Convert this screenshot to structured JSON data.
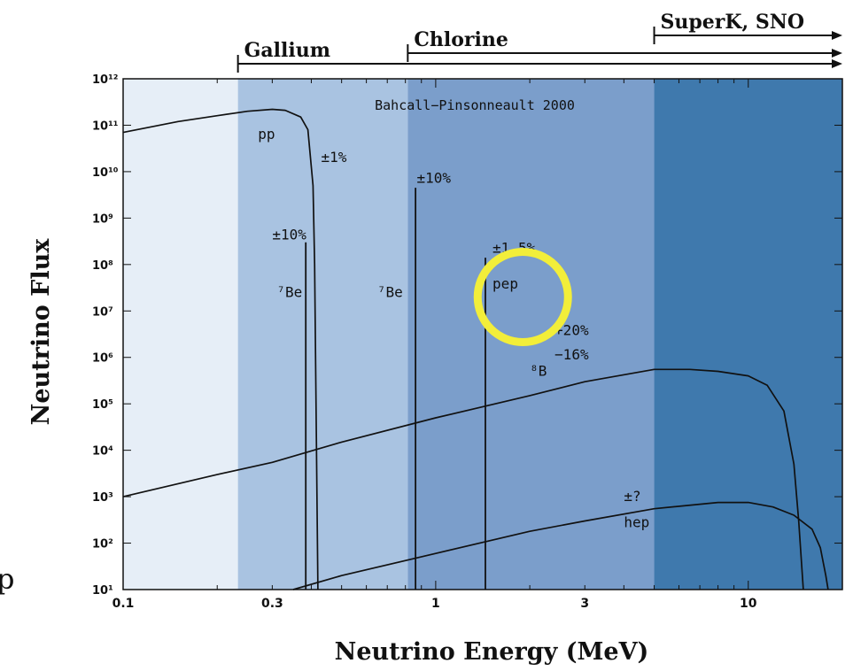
{
  "chart_data": {
    "type": "line",
    "title": "Bahcall−Pinsonneault 2000",
    "xlabel": "Neutrino Energy (MeV)",
    "ylabel": "Neutrino Flux",
    "xscale": "log",
    "yscale": "log",
    "xlim": [
      0.1,
      20
    ],
    "ylim": [
      10,
      1000000000000.0
    ],
    "x_ticks": [
      {
        "value": 0.1,
        "label": "0.1"
      },
      {
        "value": 0.3,
        "label": "0.3"
      },
      {
        "value": 1,
        "label": "1"
      },
      {
        "value": 3,
        "label": "3"
      },
      {
        "value": 10,
        "label": "10"
      }
    ],
    "y_ticks": [
      {
        "exp": 1,
        "label": "10¹"
      },
      {
        "exp": 2,
        "label": "10²"
      },
      {
        "exp": 3,
        "label": "10³"
      },
      {
        "exp": 4,
        "label": "10⁴"
      },
      {
        "exp": 5,
        "label": "10⁵"
      },
      {
        "exp": 6,
        "label": "10⁶"
      },
      {
        "exp": 7,
        "label": "10⁷"
      },
      {
        "exp": 8,
        "label": "10⁸"
      },
      {
        "exp": 9,
        "label": "10⁹"
      },
      {
        "exp": 10,
        "label": "10¹⁰"
      },
      {
        "exp": 11,
        "label": "10¹¹"
      },
      {
        "exp": 12,
        "label": "10¹²"
      }
    ],
    "grid": false,
    "bands": [
      {
        "x": [
          0.1,
          0.233
        ],
        "color": "#e6eef7"
      },
      {
        "x": [
          0.233,
          0.814
        ],
        "color": "#a9c3e1"
      },
      {
        "x": [
          0.814,
          5.0
        ],
        "color": "#7b9ecb"
      },
      {
        "x": [
          5.0,
          20
        ],
        "color": "#3f79ad"
      }
    ],
    "thresholds": [
      {
        "name": "Gallium",
        "x": 0.233
      },
      {
        "name": "Chlorine",
        "x": 0.814
      },
      {
        "name": "SuperK, SNO",
        "x": 5.0
      }
    ],
    "series": [
      {
        "name": "pp",
        "uncertainty": "±1%",
        "kind": "continuum",
        "points": [
          [
            0.1,
            70000000000.0
          ],
          [
            0.15,
            120000000000.0
          ],
          [
            0.2,
            160000000000.0
          ],
          [
            0.25,
            200000000000.0
          ],
          [
            0.3,
            220000000000.0
          ],
          [
            0.33,
            210000000000.0
          ],
          [
            0.37,
            150000000000.0
          ],
          [
            0.39,
            80000000000.0
          ],
          [
            0.405,
            5000000000.0
          ],
          [
            0.41,
            100000000.0
          ],
          [
            0.42,
            10
          ]
        ]
      },
      {
        "name": "⁸B",
        "uncertainty": "+20% −16%",
        "kind": "continuum",
        "points": [
          [
            0.1,
            1000.0
          ],
          [
            0.2,
            3000.0
          ],
          [
            0.3,
            5500.0
          ],
          [
            0.5,
            15000.0
          ],
          [
            1,
            50000.0
          ],
          [
            2,
            150000.0
          ],
          [
            3,
            300000.0
          ],
          [
            5,
            550000.0
          ],
          [
            6.5,
            550000.0
          ],
          [
            8,
            500000.0
          ],
          [
            10,
            400000.0
          ],
          [
            11.5,
            250000.0
          ],
          [
            13,
            70000.0
          ],
          [
            14,
            5000.0
          ],
          [
            14.5,
            300
          ],
          [
            15,
            10
          ]
        ]
      },
      {
        "name": "hep",
        "uncertainty": "±?",
        "kind": "continuum",
        "points": [
          [
            0.35,
            10
          ],
          [
            0.5,
            20
          ],
          [
            1,
            60
          ],
          [
            2,
            180
          ],
          [
            3,
            300
          ],
          [
            5,
            550
          ],
          [
            8,
            750
          ],
          [
            10,
            750
          ],
          [
            12,
            600
          ],
          [
            14,
            400
          ],
          [
            16,
            200
          ],
          [
            17,
            80
          ],
          [
            17.7,
            20
          ],
          [
            18,
            10
          ]
        ]
      },
      {
        "name": "⁷Be",
        "uncertainty": "±10%",
        "kind": "line",
        "energy": 0.384,
        "flux": 300000000.0
      },
      {
        "name": "⁷Be",
        "uncertainty": "±10%",
        "kind": "line",
        "energy": 0.862,
        "flux": 4500000000.0
      },
      {
        "name": "pep",
        "uncertainty": "±1.5%",
        "kind": "line",
        "energy": 1.442,
        "flux": 140000000.0
      }
    ],
    "annotations": [
      {
        "text": "pp",
        "x": 0.27,
        "y": 50000000000.0
      },
      {
        "text": "±1%",
        "x": 0.43,
        "y": 16000000000.0
      },
      {
        "text": "±10%",
        "x": 0.3,
        "y": 350000000.0
      },
      {
        "text": "⁷Be",
        "x": 0.31,
        "y": 20000000.0
      },
      {
        "text": "⁷Be",
        "x": 0.65,
        "y": 20000000.0
      },
      {
        "text": "±10%",
        "x": 0.87,
        "y": 5800000000.0
      },
      {
        "text": "±1.5%",
        "x": 1.52,
        "y": 180000000.0
      },
      {
        "text": "pep",
        "x": 1.52,
        "y": 30000000.0
      },
      {
        "text": "+20%",
        "x": 2.4,
        "y": 3000000.0
      },
      {
        "text": "−16%",
        "x": 2.4,
        "y": 900000.0
      },
      {
        "text": "⁸B",
        "x": 2.0,
        "y": 400000.0
      },
      {
        "text": "±?",
        "x": 4.0,
        "y": 800
      },
      {
        "text": "hep",
        "x": 4.0,
        "y": 220
      }
    ],
    "highlight": {
      "shape": "circle",
      "x": 1.9,
      "y": 20000000.0,
      "color": "#f2ee3a"
    }
  },
  "page": {
    "edge_glyph": "p"
  }
}
